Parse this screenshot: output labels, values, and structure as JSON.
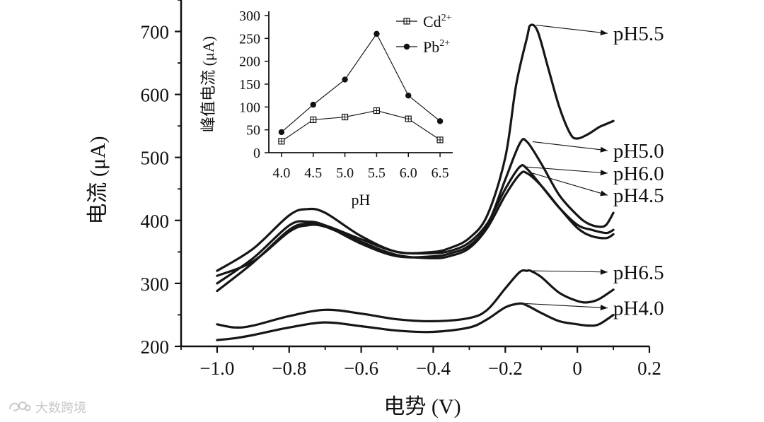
{
  "chart_data": [
    {
      "type": "line",
      "id": "main",
      "xlabel": "电势 (V)",
      "ylabel": "电流 (μA)",
      "xlim": [
        -1.1,
        0.2
      ],
      "ylim": [
        200,
        750
      ],
      "xticks": [
        -1.0,
        -0.8,
        -0.6,
        -0.4,
        -0.2,
        0,
        0.2
      ],
      "xtick_labels": [
        "−1.0",
        "−0.8",
        "−0.6",
        "−0.4",
        "−0.2",
        "0",
        "0.2"
      ],
      "yticks": [
        200,
        300,
        400,
        500,
        600,
        700
      ],
      "ytick_labels": [
        "200",
        "300",
        "400",
        "500",
        "600",
        "700"
      ],
      "series": [
        {
          "name": "pH5.5",
          "label_pos": [
            0.08,
            697
          ],
          "x": [
            -1.0,
            -0.9,
            -0.8,
            -0.75,
            -0.7,
            -0.6,
            -0.5,
            -0.4,
            -0.35,
            -0.3,
            -0.25,
            -0.2,
            -0.17,
            -0.14,
            -0.13,
            -0.11,
            -0.08,
            -0.05,
            -0.02,
            0.0,
            0.03,
            0.06,
            0.08,
            0.1
          ],
          "y": [
            320,
            355,
            408,
            418,
            412,
            375,
            350,
            350,
            357,
            372,
            408,
            500,
            615,
            690,
            710,
            700,
            640,
            580,
            538,
            530,
            537,
            548,
            553,
            558
          ]
        },
        {
          "name": "pH5.0",
          "label_pos": [
            0.08,
            511
          ],
          "x": [
            -1.0,
            -0.9,
            -0.8,
            -0.75,
            -0.7,
            -0.6,
            -0.5,
            -0.4,
            -0.35,
            -0.3,
            -0.25,
            -0.2,
            -0.16,
            -0.14,
            -0.1,
            -0.05,
            0.0,
            0.03,
            0.06,
            0.08,
            0.1
          ],
          "y": [
            300,
            340,
            392,
            398,
            392,
            363,
            343,
            343,
            348,
            360,
            392,
            465,
            522,
            525,
            490,
            440,
            408,
            395,
            390,
            393,
            412
          ]
        },
        {
          "name": "pH6.0",
          "label_pos": [
            0.08,
            475
          ],
          "x": [
            -1.0,
            -0.9,
            -0.8,
            -0.75,
            -0.7,
            -0.6,
            -0.5,
            -0.4,
            -0.35,
            -0.3,
            -0.25,
            -0.2,
            -0.16,
            -0.14,
            -0.1,
            -0.05,
            0.0,
            0.04,
            0.08,
            0.1
          ],
          "y": [
            288,
            333,
            385,
            395,
            392,
            370,
            350,
            348,
            352,
            365,
            395,
            450,
            485,
            482,
            455,
            420,
            393,
            385,
            380,
            385
          ]
        },
        {
          "name": "pH4.5",
          "label_pos": [
            0.08,
            440
          ],
          "x": [
            -1.0,
            -0.9,
            -0.8,
            -0.75,
            -0.7,
            -0.6,
            -0.5,
            -0.4,
            -0.35,
            -0.3,
            -0.25,
            -0.2,
            -0.16,
            -0.14,
            -0.1,
            -0.05,
            0.0,
            0.04,
            0.08,
            0.1
          ],
          "y": [
            312,
            335,
            382,
            392,
            390,
            366,
            345,
            340,
            344,
            356,
            388,
            440,
            473,
            475,
            455,
            420,
            388,
            375,
            372,
            378
          ]
        },
        {
          "name": "pH6.5",
          "label_pos": [
            0.08,
            318
          ],
          "x": [
            -1.0,
            -0.95,
            -0.9,
            -0.8,
            -0.7,
            -0.6,
            -0.5,
            -0.4,
            -0.3,
            -0.25,
            -0.2,
            -0.16,
            -0.14,
            -0.13,
            -0.1,
            -0.05,
            0.0,
            0.03,
            0.06,
            0.1
          ],
          "y": [
            235,
            230,
            233,
            248,
            258,
            252,
            243,
            240,
            245,
            258,
            292,
            318,
            320,
            320,
            310,
            285,
            272,
            270,
            275,
            290
          ]
        },
        {
          "name": "pH4.0",
          "label_pos": [
            0.08,
            261
          ],
          "x": [
            -1.0,
            -0.95,
            -0.9,
            -0.8,
            -0.7,
            -0.6,
            -0.5,
            -0.4,
            -0.3,
            -0.25,
            -0.2,
            -0.16,
            -0.14,
            -0.1,
            -0.05,
            0.0,
            0.03,
            0.06,
            0.1
          ],
          "y": [
            210,
            213,
            218,
            230,
            238,
            232,
            225,
            223,
            230,
            243,
            262,
            268,
            265,
            253,
            240,
            235,
            233,
            235,
            250
          ]
        }
      ]
    },
    {
      "type": "line",
      "id": "inset",
      "xlabel": "pH",
      "ylabel": "峰值电流 (μA)",
      "xlim": [
        3.8,
        6.7
      ],
      "ylim": [
        0,
        300
      ],
      "xticks": [
        4.0,
        4.5,
        5.0,
        5.5,
        6.0,
        6.5
      ],
      "xtick_labels": [
        "4.0",
        "4.5",
        "5.0",
        "5.5",
        "6.0",
        "6.5"
      ],
      "yticks": [
        0,
        50,
        100,
        150,
        200,
        250,
        300
      ],
      "ytick_labels": [
        "0",
        "50",
        "100",
        "150",
        "200",
        "250",
        "300"
      ],
      "x": [
        4.0,
        4.5,
        5.0,
        5.5,
        6.0,
        6.5
      ],
      "series": [
        {
          "name": "Cd",
          "superscript": "2+",
          "marker": "square-cross",
          "values": [
            25,
            72,
            78,
            92,
            74,
            28
          ]
        },
        {
          "name": "Pb",
          "superscript": "2+",
          "marker": "filled-circle",
          "values": [
            45,
            105,
            160,
            260,
            125,
            69
          ]
        }
      ]
    }
  ],
  "watermark": {
    "text": "大数跨境",
    "icon": "watermark-logo-icon"
  },
  "colors": {
    "line": "#161616",
    "text": "#111111",
    "watermark": "#c8c8c8"
  }
}
